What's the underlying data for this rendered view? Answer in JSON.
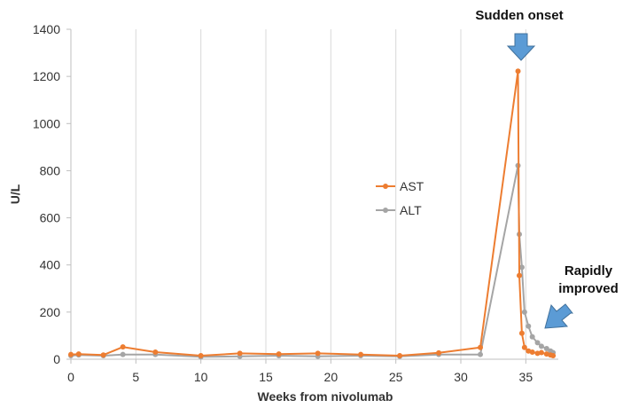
{
  "chart_data": {
    "type": "line",
    "title": "",
    "xlabel": "Weeks from nivolumab",
    "ylabel": "U/L",
    "xlim": [
      0,
      37.5
    ],
    "ylim": [
      0,
      1400
    ],
    "x_ticks": [
      0,
      5,
      10,
      15,
      20,
      25,
      30,
      35
    ],
    "x_tick_labels": [
      "0",
      "5",
      "10",
      "15",
      "20",
      "25",
      "30",
      "35"
    ],
    "y_ticks": [
      0,
      200,
      400,
      600,
      800,
      1000,
      1200,
      1400
    ],
    "y_tick_labels": [
      "0",
      "200",
      "400",
      "600",
      "800",
      "1000",
      "1200",
      "1400"
    ],
    "grid": "vertical-lines",
    "legend_position": "center",
    "series": [
      {
        "name": "AST",
        "color": "#ED7D31",
        "x": [
          0,
          0.6,
          2.5,
          4,
          6.5,
          10,
          13,
          16,
          19,
          22.3,
          25.3,
          28.3,
          31.5,
          34.4,
          34.5,
          34.7,
          34.9,
          35.2,
          35.5,
          35.9,
          36.2,
          36.6,
          36.9,
          37.1
        ],
        "y": [
          20,
          22,
          18,
          52,
          30,
          15,
          25,
          22,
          25,
          20,
          15,
          27,
          50,
          1222,
          355,
          110,
          50,
          35,
          30,
          25,
          28,
          22,
          18,
          15
        ]
      },
      {
        "name": "ALT",
        "color": "#A5A5A5",
        "x": [
          0,
          0.6,
          2.5,
          4,
          6.5,
          10,
          13,
          16,
          19,
          22.3,
          25.3,
          28.3,
          31.5,
          34.4,
          34.5,
          34.7,
          34.9,
          35.2,
          35.5,
          35.9,
          36.2,
          36.6,
          36.9,
          37.1
        ],
        "y": [
          15,
          18,
          15,
          20,
          20,
          10,
          12,
          15,
          12,
          15,
          12,
          20,
          20,
          822,
          530,
          390,
          200,
          140,
          95,
          70,
          55,
          45,
          35,
          28
        ]
      }
    ],
    "annotations": [
      {
        "id": "onset",
        "text_lines": [
          "Sudden onset"
        ],
        "arrow_color": "#5B9BD5"
      },
      {
        "id": "improved",
        "text_lines": [
          "Rapidly",
          "improved"
        ],
        "arrow_color": "#5B9BD5"
      }
    ]
  }
}
